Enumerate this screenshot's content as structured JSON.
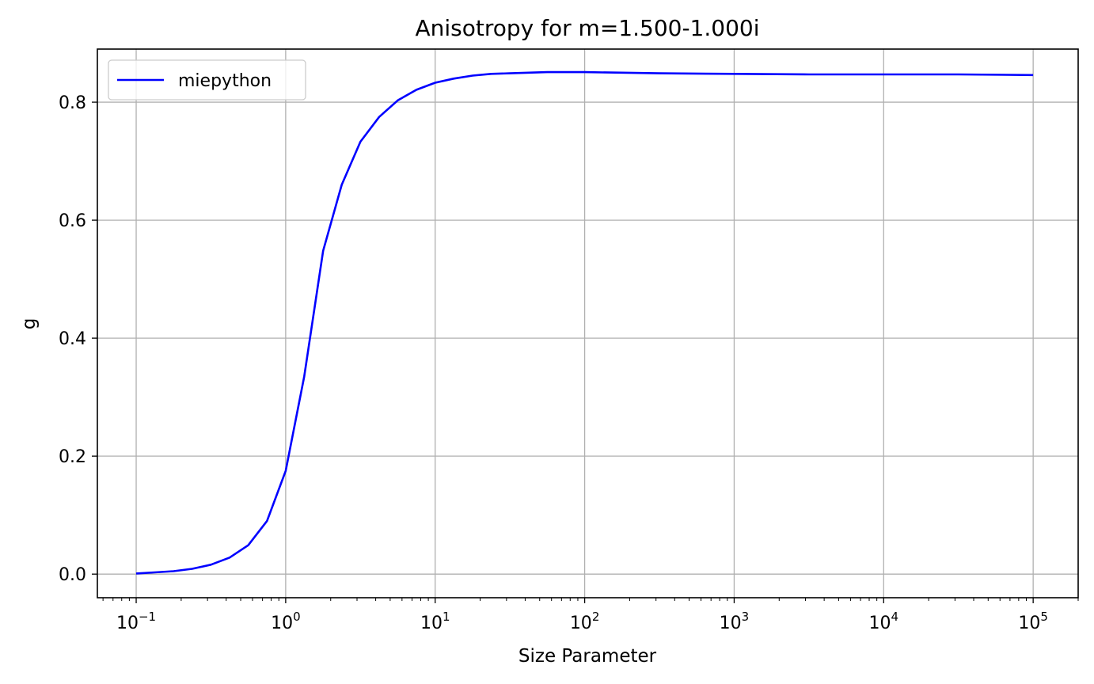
{
  "chart_data": {
    "type": "line",
    "title": "Anisotropy for m=1.500-1.000i",
    "xlabel": "Size Parameter",
    "ylabel": "g",
    "xscale": "log",
    "xlim": [
      0.055,
      200000
    ],
    "ylim": [
      -0.04,
      0.89
    ],
    "grid": true,
    "legend_position": "upper-left",
    "x_ticks": [
      {
        "base": "10",
        "exp": "−1",
        "value": 0.1
      },
      {
        "base": "10",
        "exp": "0",
        "value": 1
      },
      {
        "base": "10",
        "exp": "1",
        "value": 10
      },
      {
        "base": "10",
        "exp": "2",
        "value": 100
      },
      {
        "base": "10",
        "exp": "3",
        "value": 1000
      },
      {
        "base": "10",
        "exp": "4",
        "value": 10000
      },
      {
        "base": "10",
        "exp": "5",
        "value": 100000
      }
    ],
    "y_ticks": [
      {
        "label": "0.0",
        "value": 0.0
      },
      {
        "label": "0.2",
        "value": 0.2
      },
      {
        "label": "0.4",
        "value": 0.4
      },
      {
        "label": "0.6",
        "value": 0.6
      },
      {
        "label": "0.8",
        "value": 0.8
      }
    ],
    "series": [
      {
        "name": "miepython",
        "color": "#0000ff",
        "x": [
          0.1,
          0.133,
          0.178,
          0.237,
          0.316,
          0.422,
          0.562,
          0.75,
          1.0,
          1.33,
          1.78,
          2.37,
          3.16,
          4.22,
          5.62,
          7.5,
          10,
          13.3,
          17.8,
          23.7,
          31.6,
          42.2,
          56.2,
          75,
          100,
          316,
          1000,
          3162,
          10000,
          31623,
          100000
        ],
        "y": [
          0.001,
          0.003,
          0.005,
          0.009,
          0.016,
          0.028,
          0.049,
          0.09,
          0.175,
          0.335,
          0.548,
          0.66,
          0.733,
          0.775,
          0.803,
          0.821,
          0.833,
          0.84,
          0.845,
          0.848,
          0.849,
          0.85,
          0.851,
          0.851,
          0.851,
          0.849,
          0.848,
          0.847,
          0.847,
          0.847,
          0.846
        ]
      }
    ]
  }
}
